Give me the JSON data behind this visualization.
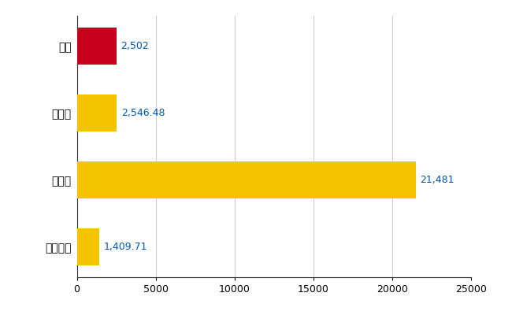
{
  "categories": [
    "全国平均",
    "県最大",
    "県平均",
    "中区"
  ],
  "values": [
    1409.71,
    21481,
    2546.48,
    2502
  ],
  "colors": [
    "#F5C400",
    "#F5C400",
    "#F5C400",
    "#C8001E"
  ],
  "labels": [
    "1,409.71",
    "21,481",
    "2,546.48",
    "2,502"
  ],
  "xlim": [
    0,
    25000
  ],
  "xticks": [
    0,
    5000,
    10000,
    15000,
    20000,
    25000
  ],
  "xtick_labels": [
    "0",
    "5000",
    "10000",
    "15000",
    "20000",
    "25000"
  ],
  "background_color": "#FFFFFF",
  "grid_color": "#CCCCCC",
  "label_color": "#0055AA",
  "bar_height": 0.55,
  "figsize": [
    6.5,
    4.0
  ],
  "dpi": 100
}
